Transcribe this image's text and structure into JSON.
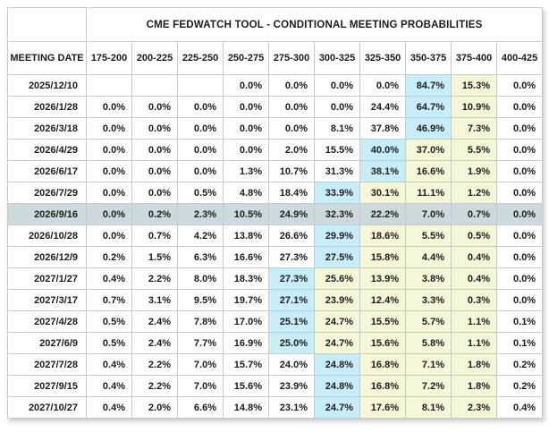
{
  "title": "CME FEDWATCH TOOL - CONDITIONAL MEETING PROBABILITIES",
  "table": {
    "date_header": "MEETING DATE",
    "rate_headers": [
      "175-200",
      "200-225",
      "225-250",
      "250-275",
      "275-300",
      "300-325",
      "325-350",
      "350-375",
      "375-400",
      "400-425"
    ],
    "rows": [
      {
        "date": "2025/12/10",
        "selected": false,
        "values": [
          "",
          "",
          "",
          "0.0%",
          "0.0%",
          "0.0%",
          "0.0%",
          "84.7%",
          "15.3%",
          "0.0%"
        ],
        "styles": [
          "",
          "",
          "",
          "",
          "",
          "",
          "",
          "blue",
          "yellow",
          ""
        ]
      },
      {
        "date": "2026/1/28",
        "selected": false,
        "values": [
          "0.0%",
          "0.0%",
          "0.0%",
          "0.0%",
          "0.0%",
          "0.0%",
          "24.4%",
          "64.7%",
          "10.9%",
          "0.0%"
        ],
        "styles": [
          "",
          "",
          "",
          "",
          "",
          "",
          "",
          "blue",
          "yellow",
          ""
        ]
      },
      {
        "date": "2026/3/18",
        "selected": false,
        "values": [
          "0.0%",
          "0.0%",
          "0.0%",
          "0.0%",
          "0.0%",
          "8.1%",
          "37.8%",
          "46.9%",
          "7.3%",
          "0.0%"
        ],
        "styles": [
          "",
          "",
          "",
          "",
          "",
          "",
          "",
          "blue",
          "yellow",
          ""
        ]
      },
      {
        "date": "2026/4/29",
        "selected": false,
        "values": [
          "0.0%",
          "0.0%",
          "0.0%",
          "0.0%",
          "2.0%",
          "15.5%",
          "40.0%",
          "37.0%",
          "5.5%",
          "0.0%"
        ],
        "styles": [
          "",
          "",
          "",
          "",
          "",
          "",
          "blue",
          "yellow",
          "yellow",
          ""
        ]
      },
      {
        "date": "2026/6/17",
        "selected": false,
        "values": [
          "0.0%",
          "0.0%",
          "0.0%",
          "1.3%",
          "10.7%",
          "31.3%",
          "38.1%",
          "16.6%",
          "1.9%",
          "0.0%"
        ],
        "styles": [
          "",
          "",
          "",
          "",
          "",
          "",
          "blue",
          "yellow",
          "yellow",
          ""
        ]
      },
      {
        "date": "2026/7/29",
        "selected": false,
        "values": [
          "0.0%",
          "0.0%",
          "0.5%",
          "4.8%",
          "18.4%",
          "33.9%",
          "30.1%",
          "11.1%",
          "1.2%",
          "0.0%"
        ],
        "styles": [
          "",
          "",
          "",
          "",
          "",
          "blue",
          "yellow",
          "yellow",
          "yellow",
          ""
        ]
      },
      {
        "date": "2026/9/16",
        "selected": true,
        "values": [
          "0.0%",
          "0.2%",
          "2.3%",
          "10.5%",
          "24.9%",
          "32.3%",
          "22.2%",
          "7.0%",
          "0.7%",
          "0.0%"
        ],
        "styles": [
          "",
          "",
          "",
          "",
          "",
          "",
          "",
          "",
          "",
          ""
        ]
      },
      {
        "date": "2026/10/28",
        "selected": false,
        "values": [
          "0.0%",
          "0.7%",
          "4.2%",
          "13.8%",
          "26.6%",
          "29.9%",
          "18.6%",
          "5.5%",
          "0.5%",
          "0.0%"
        ],
        "styles": [
          "",
          "",
          "",
          "",
          "",
          "blue",
          "yellow",
          "yellow",
          "yellow",
          ""
        ]
      },
      {
        "date": "2026/12/9",
        "selected": false,
        "values": [
          "0.2%",
          "1.5%",
          "6.3%",
          "16.6%",
          "27.3%",
          "27.5%",
          "15.8%",
          "4.4%",
          "0.4%",
          "0.0%"
        ],
        "styles": [
          "",
          "",
          "",
          "",
          "",
          "blue",
          "yellow",
          "yellow",
          "yellow",
          ""
        ]
      },
      {
        "date": "2027/1/27",
        "selected": false,
        "values": [
          "0.4%",
          "2.2%",
          "8.0%",
          "18.3%",
          "27.3%",
          "25.6%",
          "13.9%",
          "3.8%",
          "0.4%",
          "0.0%"
        ],
        "styles": [
          "",
          "",
          "",
          "",
          "blue",
          "yellow",
          "yellow",
          "yellow",
          "yellow",
          ""
        ]
      },
      {
        "date": "2027/3/17",
        "selected": false,
        "values": [
          "0.7%",
          "3.1%",
          "9.5%",
          "19.7%",
          "27.1%",
          "23.9%",
          "12.4%",
          "3.3%",
          "0.3%",
          "0.0%"
        ],
        "styles": [
          "",
          "",
          "",
          "",
          "blue",
          "yellow",
          "yellow",
          "yellow",
          "yellow",
          ""
        ]
      },
      {
        "date": "2027/4/28",
        "selected": false,
        "values": [
          "0.5%",
          "2.4%",
          "7.8%",
          "17.0%",
          "25.1%",
          "24.7%",
          "15.5%",
          "5.7%",
          "1.1%",
          "0.1%"
        ],
        "styles": [
          "",
          "",
          "",
          "",
          "blue",
          "yellow",
          "yellow",
          "yellow",
          "yellow",
          ""
        ]
      },
      {
        "date": "2027/6/9",
        "selected": false,
        "values": [
          "0.5%",
          "2.4%",
          "7.7%",
          "16.9%",
          "25.0%",
          "24.7%",
          "15.6%",
          "5.8%",
          "1.1%",
          "0.1%"
        ],
        "styles": [
          "",
          "",
          "",
          "",
          "blue",
          "yellow",
          "yellow",
          "yellow",
          "yellow",
          ""
        ]
      },
      {
        "date": "2027/7/28",
        "selected": false,
        "values": [
          "0.4%",
          "2.2%",
          "7.0%",
          "15.7%",
          "24.0%",
          "24.8%",
          "16.8%",
          "7.1%",
          "1.8%",
          "0.2%"
        ],
        "styles": [
          "",
          "",
          "",
          "",
          "",
          "blue",
          "yellow",
          "yellow",
          "yellow",
          ""
        ]
      },
      {
        "date": "2027/9/15",
        "selected": false,
        "values": [
          "0.4%",
          "2.2%",
          "7.0%",
          "15.6%",
          "23.9%",
          "24.8%",
          "16.8%",
          "7.2%",
          "1.8%",
          "0.2%"
        ],
        "styles": [
          "",
          "",
          "",
          "",
          "",
          "blue",
          "yellow",
          "yellow",
          "yellow",
          ""
        ]
      },
      {
        "date": "2027/10/27",
        "selected": false,
        "values": [
          "0.4%",
          "2.0%",
          "6.6%",
          "14.8%",
          "23.1%",
          "24.7%",
          "17.6%",
          "8.1%",
          "2.3%",
          "0.4%"
        ],
        "styles": [
          "",
          "",
          "",
          "",
          "",
          "blue",
          "yellow",
          "yellow",
          "yellow",
          ""
        ]
      }
    ]
  },
  "colors": {
    "highlight_blue": "#c6edf8",
    "highlight_yellow": "#f6f6d9",
    "selected_row": "#ccd9dd",
    "border": "#c9c9c9",
    "text": "#1b1b1b",
    "background": "#ffffff"
  },
  "legend_semantics": {
    "blue_cell": "highest-probability rate range for the meeting",
    "yellow_cell": "probability tail above the highest-probability range",
    "selected_row": "currently selected meeting date 2026/9/16"
  }
}
